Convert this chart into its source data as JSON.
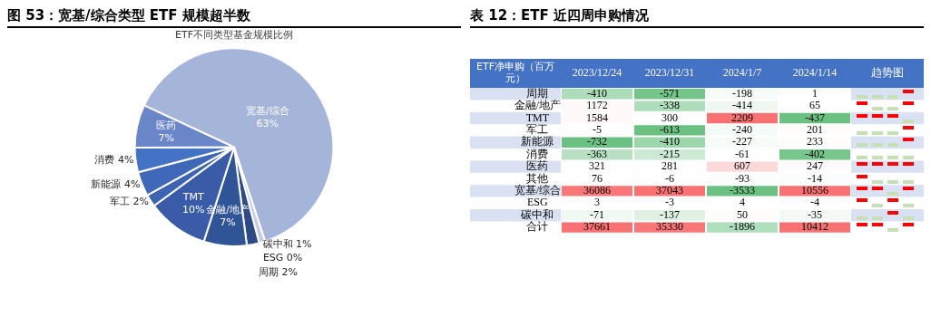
{
  "chart_data": [
    {
      "type": "pie",
      "title": "图 53：宽基/综合类型 ETF 规模超半数",
      "subtitle": "ETF不同类型基金规模比例",
      "categories": [
        "宽基/综合",
        "碳中和",
        "ESG",
        "周期",
        "金融/地产",
        "TMT",
        "军工",
        "新能源",
        "消费",
        "医药"
      ],
      "values": [
        63,
        1,
        0,
        2,
        7,
        10,
        2,
        4,
        4,
        7
      ],
      "value_labels": [
        "63%",
        "1%",
        "0%",
        "2%",
        "7%",
        "10%",
        "2%",
        "4%",
        "4%",
        "7%"
      ],
      "colors": [
        "#a5b4d9",
        "#c5cde6",
        "#dde3f0",
        "#2c4a86",
        "#2f5597",
        "#3a5ca8",
        "#3d64b0",
        "#4068b8",
        "#4472c4",
        "#6a86c9"
      ]
    },
    {
      "type": "heatmap",
      "title": "表 12：ETF 近四周申购情况",
      "ylabel": "ETF净申购（百万元）",
      "data_labels": true,
      "categories": [
        "2023/12/24",
        "2023/12/31",
        "2024/1/7",
        "2024/1/14",
        "趋势图"
      ],
      "y_categories": [
        "周期",
        "金融/地产",
        "TMT",
        "军工",
        "新能源",
        "消费",
        "医药",
        "其他",
        "宽基/综合",
        "ESG",
        "碳中和",
        "合计"
      ],
      "cells": [
        [
          -410,
          -571,
          -198,
          1,
          null
        ],
        [
          1172,
          -338,
          -414,
          65,
          null
        ],
        [
          1584,
          300,
          2209,
          -437,
          null
        ],
        [
          -5,
          -613,
          -240,
          201,
          null
        ],
        [
          -732,
          -410,
          -227,
          233,
          null
        ],
        [
          -363,
          -215,
          -61,
          -402,
          null
        ],
        [
          321,
          281,
          607,
          247,
          null
        ],
        [
          76,
          -6,
          -93,
          -14,
          null
        ],
        [
          36086,
          37043,
          -3533,
          10556,
          null
        ],
        [
          3,
          -3,
          4,
          -4,
          null
        ],
        [
          -71,
          -137,
          50,
          -35,
          null
        ],
        [
          37661,
          35330,
          -1896,
          10412,
          null
        ]
      ]
    }
  ]
}
